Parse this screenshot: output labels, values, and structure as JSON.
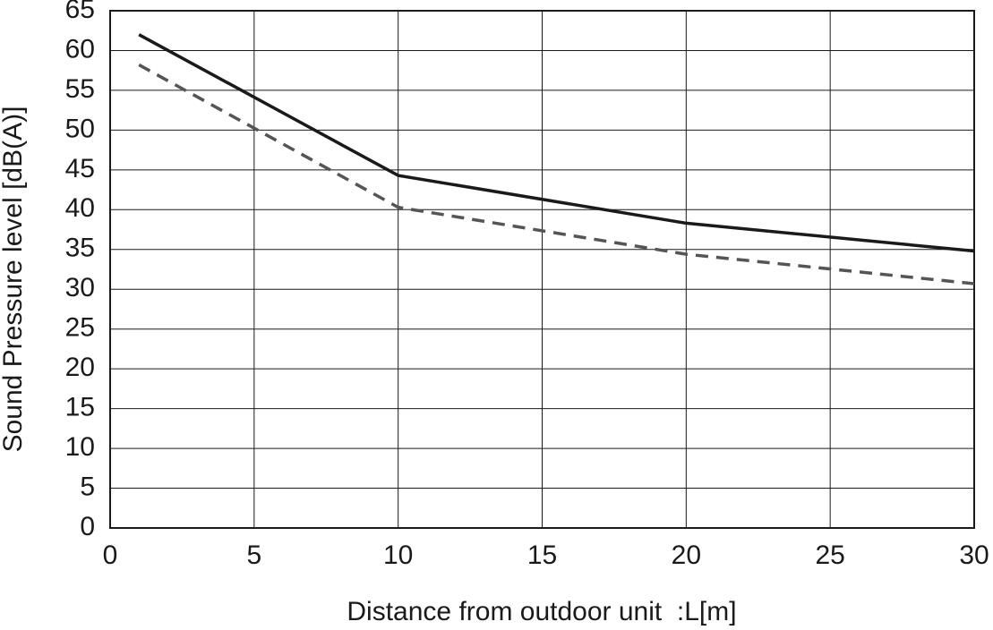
{
  "chart_data": {
    "type": "line",
    "x_label": "Distance from outdoor unit  :L[m]",
    "y_label": "Sound Pressure level [dB(A)]",
    "x": [
      1,
      10,
      20,
      30
    ],
    "series": [
      {
        "color": "#1a1a1a",
        "line_style": "solid",
        "values": [
          62,
          44.3,
          38.3,
          34.8
        ]
      },
      {
        "color": "#555555",
        "line_style": "dashed",
        "values": [
          58.2,
          40.3,
          34.4,
          30.7
        ]
      }
    ],
    "xlim": [
      0,
      30
    ],
    "xticks": [
      0,
      5,
      10,
      15,
      20,
      25,
      30
    ],
    "ylim": [
      0,
      65
    ],
    "yticks": [
      0,
      5,
      10,
      15,
      20,
      25,
      30,
      35,
      40,
      45,
      50,
      55,
      60,
      65
    ],
    "grid": true
  }
}
